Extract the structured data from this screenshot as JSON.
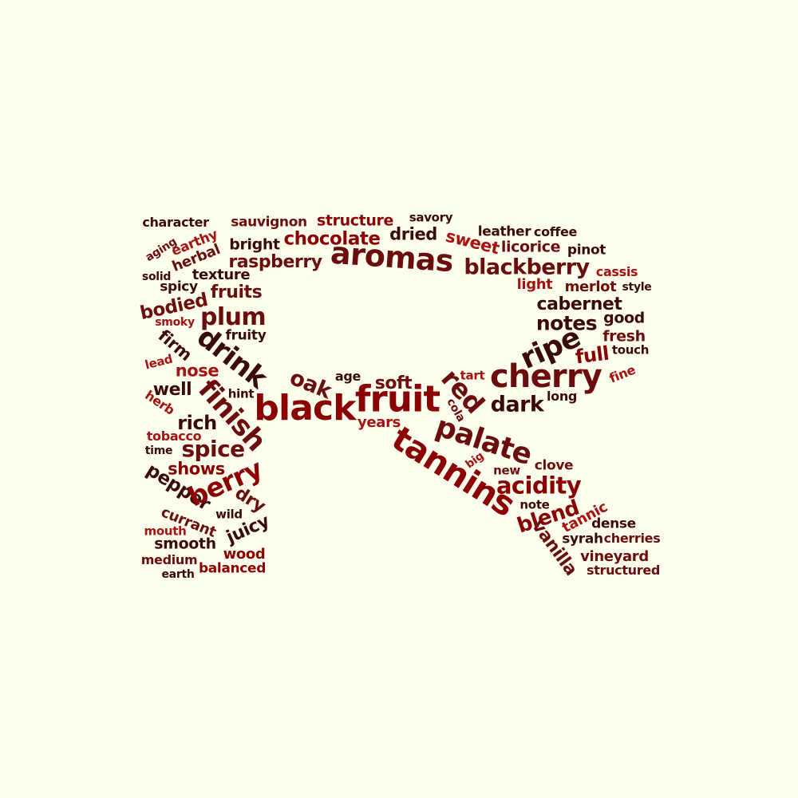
{
  "palette": {
    "background": "#fefeee",
    "dark_brown": "#3a0a0a",
    "maroon": "#6b0d0d",
    "dark_red": "#8b0000",
    "red": "#a61111"
  },
  "words": [
    {
      "text": "character",
      "color": "#3a0a0a"
    },
    {
      "text": "sauvignon",
      "color": "#6b0d0d"
    },
    {
      "text": "structure",
      "color": "#8b0000"
    },
    {
      "text": "savory",
      "color": "#3a0a0a"
    },
    {
      "text": "earthy",
      "color": "#a61111"
    },
    {
      "text": "aging",
      "color": "#6b0d0d"
    },
    {
      "text": "herbal",
      "color": "#6b0d0d"
    },
    {
      "text": "bright",
      "color": "#3a0a0a"
    },
    {
      "text": "chocolate",
      "color": "#8b0000"
    },
    {
      "text": "dried",
      "color": "#3a0a0a"
    },
    {
      "text": "sweet",
      "color": "#a61111"
    },
    {
      "text": "leather",
      "color": "#3a0a0a"
    },
    {
      "text": "coffee",
      "color": "#3a0a0a"
    },
    {
      "text": "licorice",
      "color": "#6b0d0d"
    },
    {
      "text": "pinot",
      "color": "#3a0a0a"
    },
    {
      "text": "raspberry",
      "color": "#6b0d0d"
    },
    {
      "text": "aromas",
      "color": "#6b0d0d"
    },
    {
      "text": "blackberry",
      "color": "#6b0d0d"
    },
    {
      "text": "cassis",
      "color": "#a61111"
    },
    {
      "text": "solid",
      "color": "#3a0a0a"
    },
    {
      "text": "texture",
      "color": "#3a0a0a"
    },
    {
      "text": "spicy",
      "color": "#3a0a0a"
    },
    {
      "text": "fruits",
      "color": "#6b0d0d"
    },
    {
      "text": "light",
      "color": "#a61111"
    },
    {
      "text": "merlot",
      "color": "#6b0d0d"
    },
    {
      "text": "style",
      "color": "#3a0a0a"
    },
    {
      "text": "bodied",
      "color": "#6b0d0d"
    },
    {
      "text": "plum",
      "color": "#6b0d0d"
    },
    {
      "text": "cabernet",
      "color": "#3a0a0a"
    },
    {
      "text": "smoky",
      "color": "#a61111"
    },
    {
      "text": "good",
      "color": "#3a0a0a"
    },
    {
      "text": "notes",
      "color": "#3a0a0a"
    },
    {
      "text": "fruity",
      "color": "#3a0a0a"
    },
    {
      "text": "fresh",
      "color": "#6b0d0d"
    },
    {
      "text": "firm",
      "color": "#3a0a0a"
    },
    {
      "text": "drink",
      "color": "#3a0a0a"
    },
    {
      "text": "ripe",
      "color": "#3a0a0a"
    },
    {
      "text": "touch",
      "color": "#3a0a0a"
    },
    {
      "text": "lead",
      "color": "#a61111"
    },
    {
      "text": "full",
      "color": "#8b0000"
    },
    {
      "text": "nose",
      "color": "#a61111"
    },
    {
      "text": "cherry",
      "color": "#6b0d0d"
    },
    {
      "text": "fine",
      "color": "#a61111"
    },
    {
      "text": "oak",
      "color": "#6b0d0d"
    },
    {
      "text": "age",
      "color": "#3a0a0a"
    },
    {
      "text": "tart",
      "color": "#a61111"
    },
    {
      "text": "well",
      "color": "#3a0a0a"
    },
    {
      "text": "soft",
      "color": "#6b0d0d"
    },
    {
      "text": "red",
      "color": "#6b0d0d"
    },
    {
      "text": "hint",
      "color": "#3a0a0a"
    },
    {
      "text": "finish",
      "color": "#6b0d0d"
    },
    {
      "text": "long",
      "color": "#3a0a0a"
    },
    {
      "text": "fruit",
      "color": "#8b0000"
    },
    {
      "text": "herb",
      "color": "#a61111"
    },
    {
      "text": "black",
      "color": "#8b0000"
    },
    {
      "text": "dark",
      "color": "#3a0a0a"
    },
    {
      "text": "rich",
      "color": "#3a0a0a"
    },
    {
      "text": "cola",
      "color": "#6b0d0d"
    },
    {
      "text": "years",
      "color": "#a61111"
    },
    {
      "text": "tobacco",
      "color": "#a61111"
    },
    {
      "text": "palate",
      "color": "#6b0d0d"
    },
    {
      "text": "spice",
      "color": "#6b0d0d"
    },
    {
      "text": "time",
      "color": "#3a0a0a"
    },
    {
      "text": "tannins",
      "color": "#8b0000"
    },
    {
      "text": "big",
      "color": "#a61111"
    },
    {
      "text": "clove",
      "color": "#6b0d0d"
    },
    {
      "text": "shows",
      "color": "#8b0000"
    },
    {
      "text": "new",
      "color": "#6b0d0d"
    },
    {
      "text": "acidity",
      "color": "#8b0000"
    },
    {
      "text": "pepper",
      "color": "#3a0a0a"
    },
    {
      "text": "berry",
      "color": "#8b0000"
    },
    {
      "text": "dry",
      "color": "#6b0d0d"
    },
    {
      "text": "note",
      "color": "#3a0a0a"
    },
    {
      "text": "currant",
      "color": "#6b0d0d"
    },
    {
      "text": "wild",
      "color": "#3a0a0a"
    },
    {
      "text": "blend",
      "color": "#8b0000"
    },
    {
      "text": "tannic",
      "color": "#a61111"
    },
    {
      "text": "juicy",
      "color": "#3a0a0a"
    },
    {
      "text": "dense",
      "color": "#3a0a0a"
    },
    {
      "text": "mouth",
      "color": "#a61111"
    },
    {
      "text": "syrah",
      "color": "#3a0a0a"
    },
    {
      "text": "cherries",
      "color": "#6b0d0d"
    },
    {
      "text": "smooth",
      "color": "#3a0a0a"
    },
    {
      "text": "vanilla",
      "color": "#6b0d0d"
    },
    {
      "text": "wood",
      "color": "#8b0000"
    },
    {
      "text": "vineyard",
      "color": "#6b0d0d"
    },
    {
      "text": "medium",
      "color": "#6b0d0d"
    },
    {
      "text": "balanced",
      "color": "#8b0000"
    },
    {
      "text": "structured",
      "color": "#6b0d0d"
    },
    {
      "text": "earth",
      "color": "#3a0a0a"
    }
  ]
}
